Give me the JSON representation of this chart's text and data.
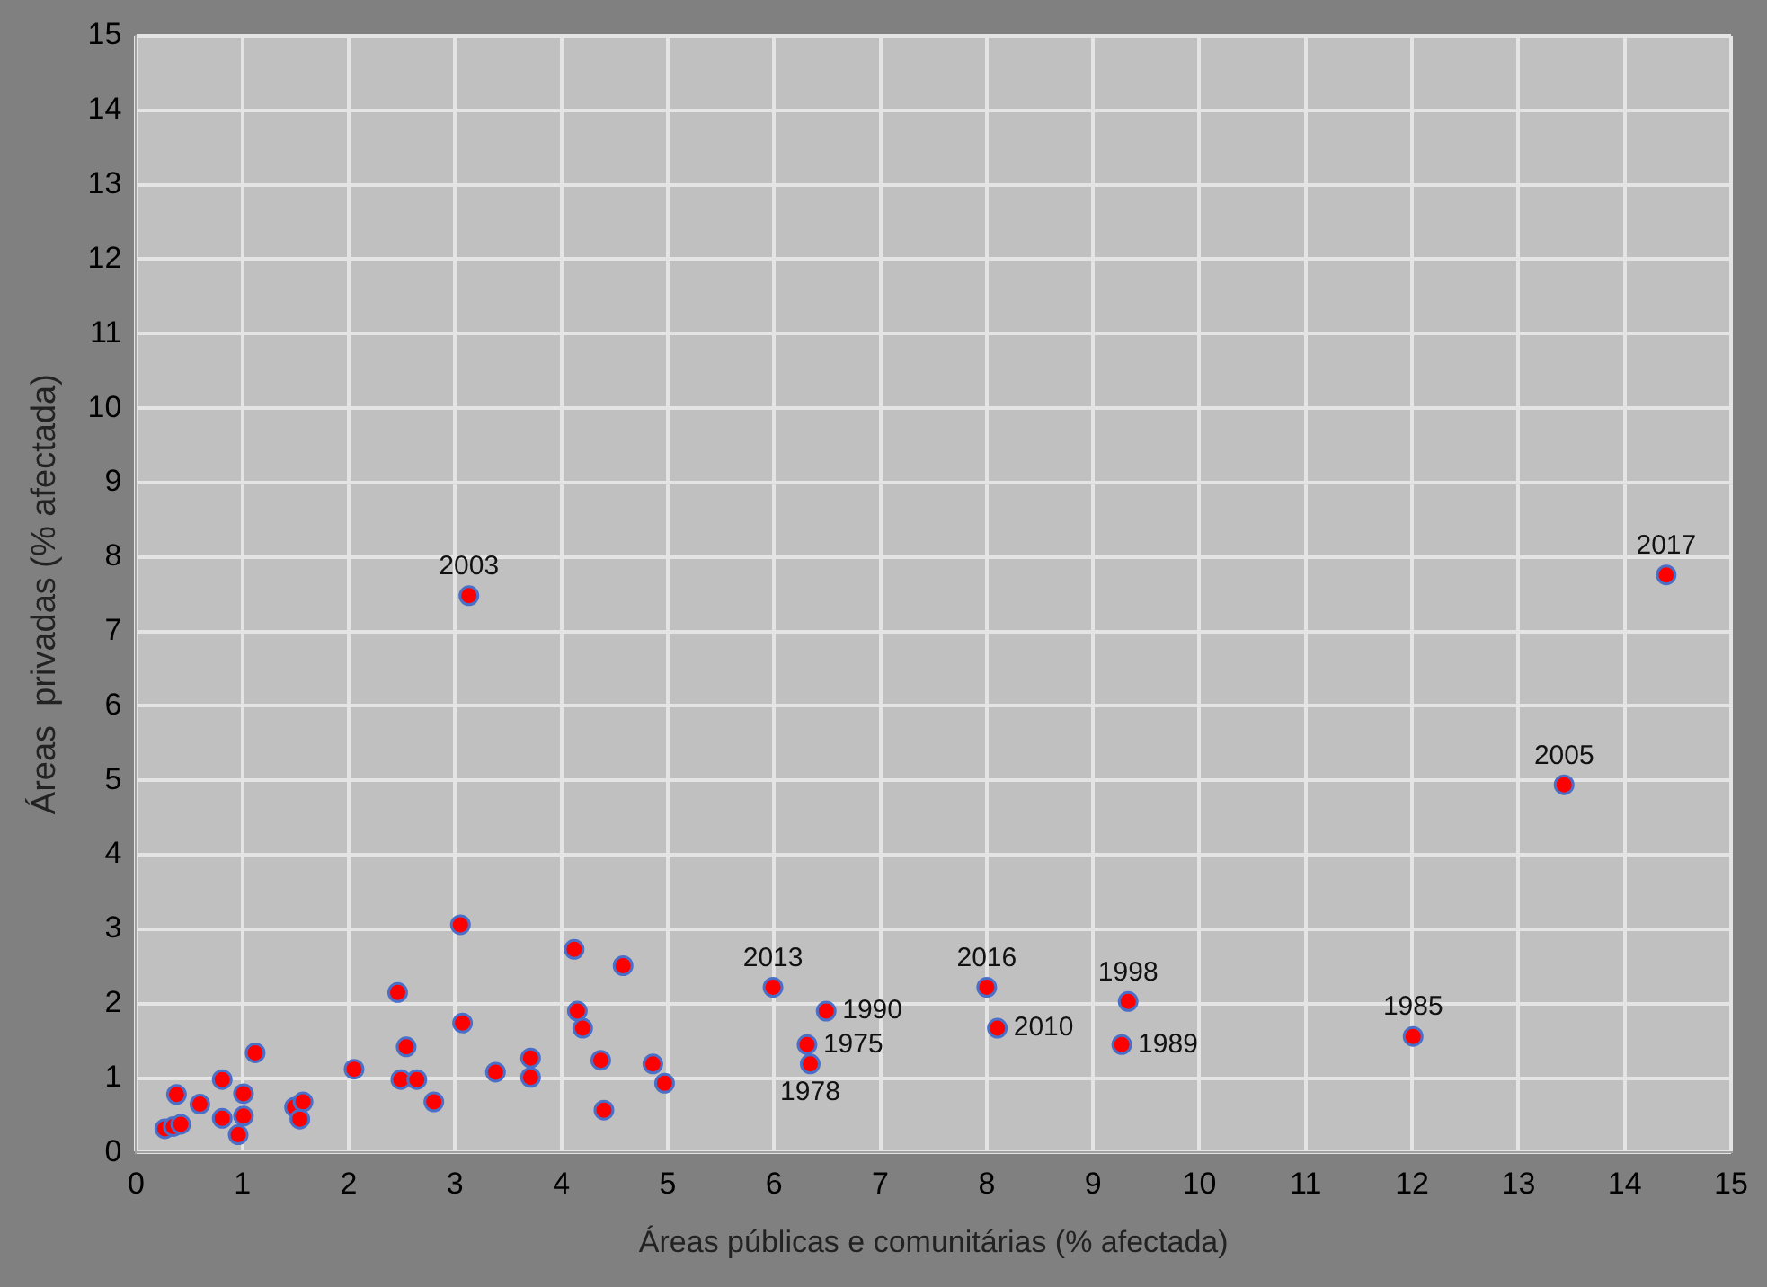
{
  "chart_data": {
    "type": "scatter",
    "xlabel": "Áreas públicas e comunitárias (% afectada)",
    "ylabel": "Áreas  privadas (% afectada)",
    "xlim": [
      0,
      15
    ],
    "ylim": [
      0,
      15
    ],
    "xticks": [
      0,
      1,
      2,
      3,
      4,
      5,
      6,
      7,
      8,
      9,
      10,
      11,
      12,
      13,
      14,
      15
    ],
    "yticks": [
      0,
      1,
      2,
      3,
      4,
      5,
      6,
      7,
      8,
      9,
      10,
      11,
      12,
      13,
      14,
      15
    ],
    "grid": true,
    "legend": false,
    "marker": "circle",
    "series": [
      {
        "color": "#ff0000",
        "x": [
          3.05,
          4.12,
          4.58,
          2.46,
          3.07,
          4.15,
          4.2,
          2.54,
          1.12,
          2.05,
          3.38,
          3.71,
          3.71,
          4.37,
          4.86,
          4.97,
          4.4,
          2.49,
          2.64,
          2.8,
          0.81,
          0.38,
          0.6,
          1.01,
          1.01,
          0.81,
          0.96,
          1.49,
          1.57,
          1.54,
          0.27,
          0.35,
          0.42,
          5.99,
          6.49,
          6.31,
          6.34,
          8.0,
          8.1,
          9.33,
          9.27,
          3.13,
          12.01,
          13.43,
          14.39
        ],
        "values": [
          3.06,
          2.73,
          2.51,
          2.15,
          1.74,
          1.9,
          1.67,
          1.42,
          1.34,
          1.12,
          1.08,
          1.27,
          1.01,
          1.24,
          1.19,
          0.93,
          0.57,
          0.98,
          0.98,
          0.68,
          0.98,
          0.78,
          0.65,
          0.79,
          0.49,
          0.46,
          0.24,
          0.61,
          0.68,
          0.45,
          0.32,
          0.35,
          0.38,
          2.22,
          1.9,
          1.45,
          1.19,
          2.22,
          1.67,
          2.03,
          1.45,
          7.48,
          1.56,
          4.94,
          7.76
        ]
      }
    ],
    "annotations": [
      {
        "text": "2003",
        "x": 3.13,
        "y": 7.48
      },
      {
        "text": "2013",
        "x": 5.99,
        "y": 2.22
      },
      {
        "text": "1990",
        "x": 6.49,
        "y": 1.9
      },
      {
        "text": "1975",
        "x": 6.31,
        "y": 1.45
      },
      {
        "text": "1978",
        "x": 6.34,
        "y": 1.19
      },
      {
        "text": "2016",
        "x": 8.0,
        "y": 2.22
      },
      {
        "text": "2010",
        "x": 8.1,
        "y": 1.67
      },
      {
        "text": "1998",
        "x": 9.33,
        "y": 2.03
      },
      {
        "text": "1989",
        "x": 9.27,
        "y": 1.45
      },
      {
        "text": "1985",
        "x": 12.01,
        "y": 1.56
      },
      {
        "text": "2005",
        "x": 13.43,
        "y": 4.94
      },
      {
        "text": "2017",
        "x": 14.39,
        "y": 7.76
      }
    ]
  }
}
